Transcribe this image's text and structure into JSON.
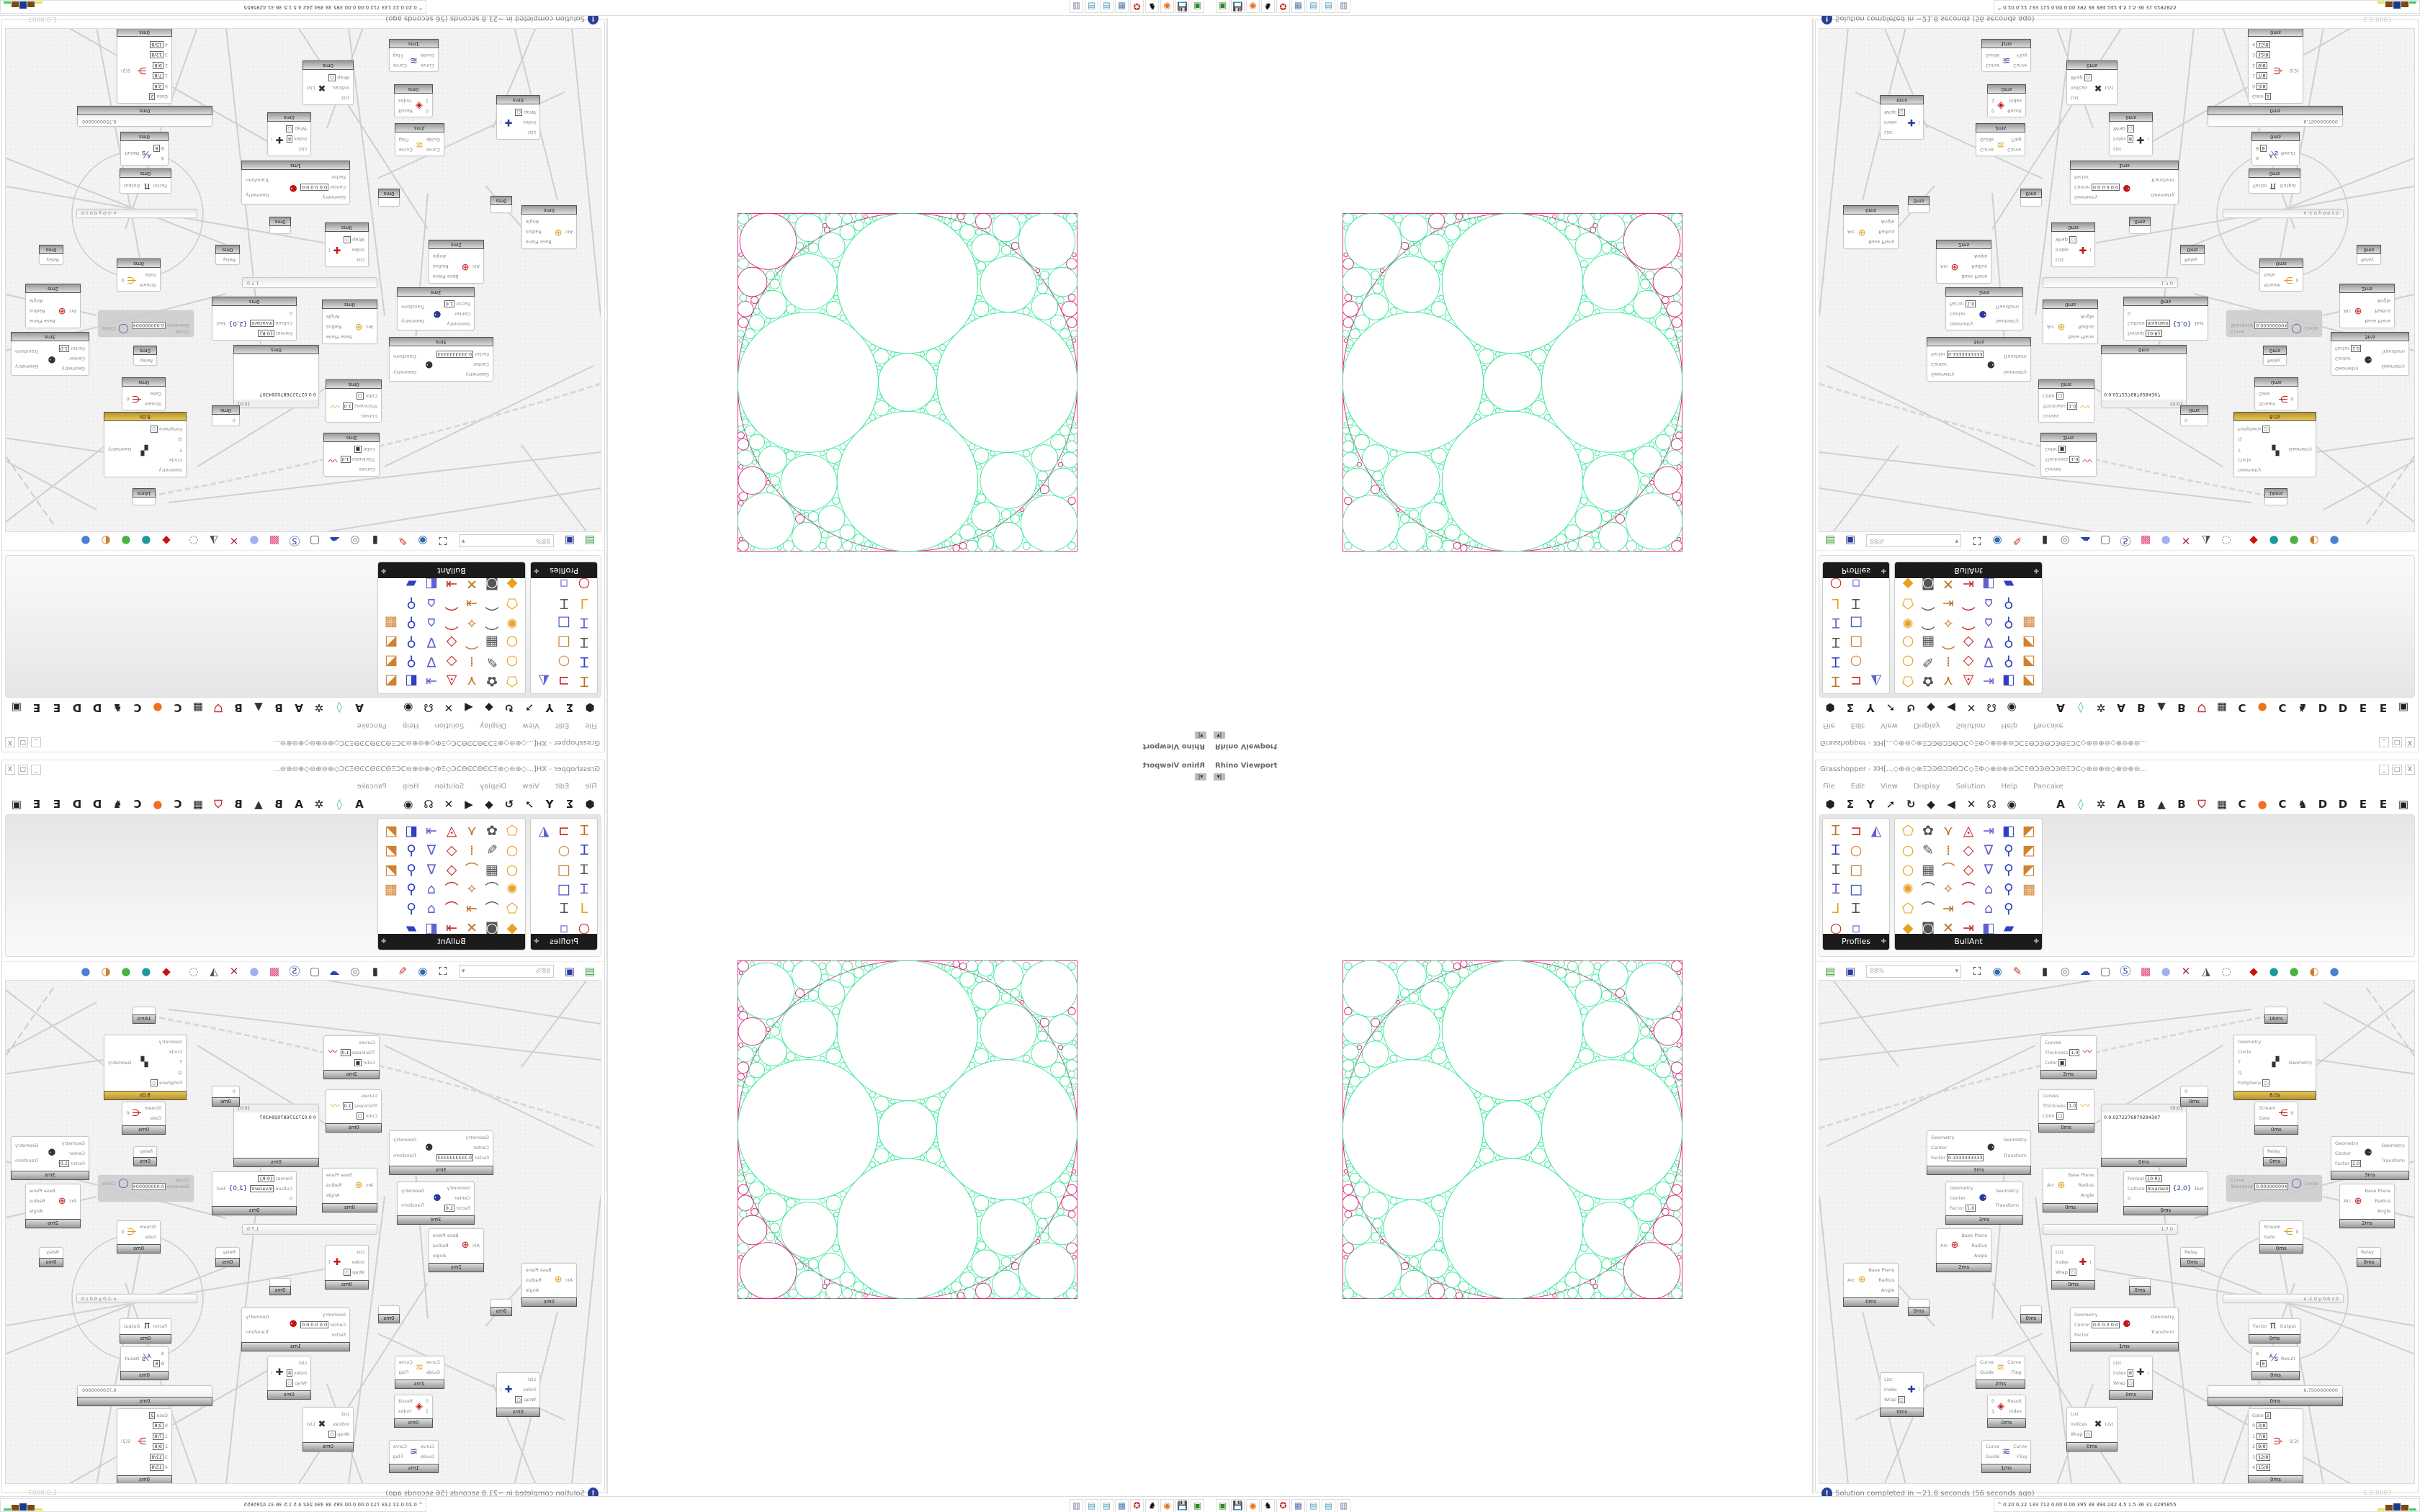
{
  "viewport": {
    "label": "Rhino Viewport",
    "dropdown": "▾|"
  },
  "grasshopper": {
    "title": "Grasshopper - XH[...◇⊕⊖◇⊕ΞϽϿΘϽϿΘϽϹ◇ΞΦ◇⊕⊖⊕⊖ϽϹΞΘϽϿΘϽϿΘΞϽϹ◇⊕⊖⊕⊖◇⊕⊖⊕⊖...",
    "window_buttons": [
      "_",
      "□",
      "X"
    ],
    "menu": [
      "File",
      "Edit",
      "View",
      "Display",
      "Solution",
      "Help",
      "Pancake"
    ],
    "tabs_left": [
      {
        "icon": "params-hexagon-icon",
        "g": "⬢"
      },
      {
        "icon": "maths-sigma-icon",
        "g": "Σ"
      },
      {
        "icon": "sets-icon",
        "g": "Y"
      },
      {
        "icon": "vector-icon",
        "g": "➚"
      },
      {
        "icon": "curve-icon",
        "g": "↻"
      },
      {
        "icon": "surface-icon",
        "g": "◆"
      },
      {
        "icon": "mesh-icon",
        "g": "◀"
      },
      {
        "icon": "intersect-icon",
        "g": "✕"
      },
      {
        "icon": "transform-icon",
        "g": "☊"
      },
      {
        "icon": "display-eye-icon",
        "g": "◉"
      }
    ],
    "tabs_right": [
      {
        "icon": "tab-a-icon",
        "g": "A"
      },
      {
        "icon": "crystal-icon",
        "g": "◊"
      },
      {
        "icon": "plugin-icon",
        "g": "✲"
      },
      {
        "icon": "tab-a-icon",
        "g": "A"
      },
      {
        "icon": "tab-b-icon",
        "g": "B"
      },
      {
        "icon": "mountain-icon",
        "g": "▲"
      },
      {
        "icon": "tab-b-icon",
        "g": "B"
      },
      {
        "icon": "shield-icon",
        "g": "⛉"
      },
      {
        "icon": "grid-icon",
        "g": "▦"
      },
      {
        "icon": "tab-c-icon",
        "g": "C"
      },
      {
        "icon": "orange-dot-icon",
        "g": "●"
      },
      {
        "icon": "tab-c-icon",
        "g": "C"
      },
      {
        "icon": "bird-icon",
        "g": "♞"
      },
      {
        "icon": "tab-d-icon",
        "g": "D"
      },
      {
        "icon": "tab-d-icon",
        "g": "D"
      },
      {
        "icon": "tab-e-icon",
        "g": "E"
      },
      {
        "icon": "tab-e-icon",
        "g": "E"
      },
      {
        "icon": "overflow-icon",
        "g": "▣"
      }
    ],
    "panels": [
      {
        "label": "Profiles",
        "cols": 3,
        "icons": [
          "Ꮖ",
          "⊐",
          "◭",
          "Ꮖ",
          "○",
          "",
          "Ɪ",
          "□",
          "",
          "Ɪ",
          "□",
          "",
          "⅃",
          "Ꮖ",
          "",
          "○",
          "▫",
          ""
        ]
      },
      {
        "label": "BullAnt",
        "cols": 7,
        "icons": [
          "⬠",
          "✿",
          "⋎",
          "◬",
          "⇥",
          "◧",
          "◩",
          "○",
          "✎",
          "⁞",
          "◇",
          "∇",
          "⚲",
          "◩",
          "○",
          "▦",
          "⌒",
          "◇",
          "∇",
          "⚲",
          "◩",
          "✺",
          "⌒",
          "✧",
          "⌒",
          "⌂",
          "⚲",
          "▦",
          "⬠",
          "⌒",
          "⇥",
          "⌒",
          "⌂",
          "⚲",
          "",
          "◆",
          "◙",
          "✕",
          "⇥",
          "◧",
          "▰",
          ""
        ]
      }
    ],
    "canvas_tools": {
      "left": [
        {
          "icon": "new-file-icon",
          "g": "▤"
        },
        {
          "icon": "save-icon",
          "g": "▣"
        }
      ],
      "zoom": "88%",
      "right": [
        {
          "icon": "zoom-extents-icon",
          "g": "⛶"
        },
        {
          "icon": "preview-eye-icon",
          "g": "◉"
        },
        {
          "icon": "sketch-icon",
          "g": "✎"
        },
        {
          "icon": "bin-icon",
          "g": "▮"
        },
        {
          "icon": "cluster-icon",
          "g": "◎"
        },
        {
          "icon": "cha-icon",
          "g": "☁"
        },
        {
          "icon": "window-icon",
          "g": "▢"
        },
        {
          "icon": "s-icon",
          "g": "Ⓢ"
        },
        {
          "icon": "gift-icon",
          "g": "▩"
        },
        {
          "icon": "bulb-icon",
          "g": "●"
        },
        {
          "icon": "cross-icon",
          "g": "✕"
        },
        {
          "icon": "bell-icon",
          "g": "◮"
        },
        {
          "icon": "ring-icon",
          "g": "◌"
        },
        {
          "icon": "red-gem-icon",
          "g": "◆"
        },
        {
          "icon": "teal-sphere-icon",
          "g": "●"
        },
        {
          "icon": "green-sphere-icon",
          "g": "●"
        },
        {
          "icon": "half-sphere-icon",
          "g": "◐"
        },
        {
          "icon": "blue-sphere-icon",
          "g": "●"
        }
      ]
    },
    "nodes": [
      {
        "in": [
          {
            "l": "Curves"
          },
          {
            "l": "Thickness",
            "v": "1.0"
          },
          {
            "l": "Color",
            "v": "■"
          }
        ],
        "out": [],
        "icon": "〰",
        "t": "2ms"
      },
      {
        "in": [
          {
            "l": "Curves"
          },
          {
            "l": "Thickness",
            "v": "1.0"
          },
          {
            "l": "Color",
            "v": "□"
          }
        ],
        "out": [],
        "icon": "〰",
        "t": "0ms"
      },
      {
        "in": [
          {
            "l": "Geometry"
          },
          {
            "l": "Center"
          },
          {
            "l": "Factor",
            "v": "0.3333333333"
          }
        ],
        "out": [
          "Geometry",
          "Transform"
        ],
        "icon": "⚈",
        "t": "3ms"
      },
      {
        "in": [
          {
            "l": "Geometry"
          },
          {
            "l": "Center"
          },
          {
            "l": "Factor",
            "v": "1.0"
          }
        ],
        "out": [
          "Geometry",
          "Transform"
        ],
        "icon": "⚈",
        "t": "3ms"
      },
      {
        "in": [
          {
            "l": "Arc"
          }
        ],
        "out": [
          "Base Plane",
          "Radius",
          "Angle"
        ],
        "icon": "⊕",
        "t": "2ms"
      },
      {
        "in": [
          {
            "l": "Arc"
          }
        ],
        "out": [
          "Base Plane",
          "Radius",
          "Angle"
        ],
        "icon": "⊕",
        "t": "0ms"
      },
      {
        "in": [],
        "out": [],
        "icon": "",
        "t": "0ms"
      },
      {
        "in": [],
        "out": [],
        "icon": "",
        "t": "0ms"
      },
      {
        "in": [
          {
            "l": "List"
          },
          {
            "l": "Index"
          },
          {
            "l": "Wrap",
            "v": "○"
          }
        ],
        "out": [
          "i"
        ],
        "icon": "✚",
        "t": "0ms"
      },
      {
        "in": [
          {
            "l": "Arc"
          }
        ],
        "out": [
          "Base Plane",
          "Radius",
          "Angle"
        ],
        "icon": "⊕",
        "t": "0ms"
      },
      {
        "panel": true,
        "header": "{0;0}",
        "text": "0  0.0272276870284307",
        "t": "0ms"
      },
      {
        "in": [
          {
            "l": "Format",
            "v": "{0:R}"
          },
          {
            "l": "Culture",
            "v": "Invariant"
          },
          {
            "l": "0"
          }
        ],
        "out": [
          "Text"
        ],
        "icon": "{2,0}",
        "t": "0ms"
      },
      {
        "slider": true,
        "value": "1.7 0"
      },
      {
        "in": [
          {
            "l": "0"
          }
        ],
        "out": [],
        "icon": "",
        "t": "0ms"
      },
      {
        "in": [
          {
            "l": "Geometry"
          },
          {
            "l": "Circle"
          },
          {
            "l": "T"
          },
          {
            "l": "Q"
          },
          {
            "l": "FixSphere",
            "v": "○"
          }
        ],
        "out": [
          "Geometry"
        ],
        "icon": "▞",
        "t": "8.0s",
        "gold": true
      },
      {
        "in": [],
        "out": [],
        "icon": "",
        "t": "16ms"
      },
      {
        "in": [
          {
            "l": "Stream"
          },
          {
            "l": "Gate"
          }
        ],
        "out": [
          "0"
        ],
        "icon": "⋲",
        "t": "0ms"
      },
      {
        "in": [
          {
            "l": "Relay"
          }
        ],
        "out": [],
        "icon": "",
        "t": "0ms"
      },
      {
        "in": [
          {
            "l": "Geometry"
          },
          {
            "l": "Center"
          },
          {
            "l": "Factor",
            "v": "1.0"
          }
        ],
        "out": [
          "Geometry",
          "Transform"
        ],
        "icon": "⚈",
        "t": "3ms"
      },
      {
        "in": [
          {
            "l": "Curve"
          },
          {
            "l": "Tolerance",
            "v": "0.000000004"
          }
        ],
        "out": [
          "Circle"
        ],
        "icon": "◯",
        "t": "",
        "disabled": true
      },
      {
        "in": [
          {
            "l": "Arc"
          }
        ],
        "out": [
          "Base Plane",
          "Radius",
          "Angle"
        ],
        "icon": "⊕",
        "t": "2ms"
      },
      {
        "in": [
          {
            "l": "Stream"
          },
          {
            "l": "Gate"
          }
        ],
        "out": [
          "0"
        ],
        "icon": "⋲",
        "t": "0ms"
      },
      {
        "in": [
          {
            "l": "Relay"
          }
        ],
        "out": [],
        "icon": "",
        "t": "0ms"
      },
      {
        "in": [
          {
            "l": "Relay"
          }
        ],
        "out": [],
        "icon": "",
        "t": "0ms"
      },
      {
        "in": [],
        "out": [],
        "icon": "",
        "t": "0ms"
      },
      {
        "slider": true,
        "value": "x -1.0  y 0.0  z 0"
      },
      {
        "in": [
          {
            "l": "Factor"
          }
        ],
        "out": [
          "Output"
        ],
        "icon": "π",
        "t": "0ms"
      },
      {
        "in": [
          {
            "l": "A"
          },
          {
            "l": "B",
            "v": "8"
          }
        ],
        "out": [
          "Result"
        ],
        "icon": "⅍",
        "t": "0ms"
      },
      {
        "in": [
          {
            "l": "Geometry"
          },
          {
            "l": "Center",
            "v": "0.0 0.0 0.0"
          },
          {
            "l": "Factor"
          }
        ],
        "out": [
          "Geometry",
          "Transform"
        ],
        "icon": "⚈",
        "t": "1ms"
      },
      {
        "in": [
          {
            "l": "Curve"
          },
          {
            "l": "Guide"
          }
        ],
        "out": [
          "Curve",
          "Flag"
        ],
        "icon": "≋",
        "t": "2ms"
      },
      {
        "in": [
          {
            "l": "List"
          },
          {
            "l": "Index",
            "v": "8"
          },
          {
            "l": "Wrap",
            "v": "○"
          }
        ],
        "out": [
          "i"
        ],
        "icon": "✚",
        "t": "0ms"
      },
      {
        "in": [
          {
            "l": "List"
          },
          {
            "l": "Index"
          },
          {
            "l": "Wrap",
            "v": "○"
          }
        ],
        "out": [
          "i"
        ],
        "icon": "✚",
        "t": "0ms"
      },
      {
        "in": [
          {
            "l": "0"
          },
          {
            "l": "1"
          }
        ],
        "out": [
          "Result",
          "Index"
        ],
        "icon": "◈",
        "t": "0ms"
      },
      {
        "slider": true,
        "value": "6.7500000000",
        "t": "0ms"
      },
      {
        "in": [
          {
            "l": "List"
          },
          {
            "l": "Indices"
          },
          {
            "l": "Wrap",
            "v": "○"
          }
        ],
        "out": [
          "List"
        ],
        "icon": "✖",
        "t": "0ms"
      },
      {
        "in": [
          {
            "l": "Curve"
          },
          {
            "l": "Guide"
          }
        ],
        "out": [
          "Curve",
          "Flag"
        ],
        "icon": "≋",
        "t": "1ms"
      },
      {
        "in": [
          {
            "l": "Gate",
            "v": "2"
          },
          {
            "l": "0",
            "v": "3/8"
          },
          {
            "l": "1",
            "v": "7/8"
          },
          {
            "l": "2",
            "v": "9/8"
          },
          {
            "l": "3",
            "v": "12/8"
          },
          {
            "l": "4",
            "v": "15/8"
          }
        ],
        "out": [
          "S(2)"
        ],
        "icon": "⋺",
        "t": "0ms"
      }
    ],
    "status": "Solution completed in ~21.8 seconds (56 seconds ago)",
    "version": "1.0.0007"
  },
  "taskbar": {
    "apps": [
      {
        "icon": "terminal-app-icon",
        "g": "▣",
        "c": "#2a8a2a"
      },
      {
        "icon": "floppy-64-icon",
        "g": "💾",
        "c": "#2a3a9a"
      },
      {
        "icon": "firefox-icon",
        "g": "◉",
        "c": "#e8701a"
      },
      {
        "icon": "wolf-app-icon",
        "g": "♞",
        "c": "#000000"
      },
      {
        "icon": "red-app-icon",
        "g": "✪",
        "c": "#cc2222"
      },
      {
        "icon": "calculator-icon",
        "g": "▦",
        "c": "#5a7aaa"
      },
      {
        "icon": "notepad-icon",
        "g": "▤",
        "c": "#5aa0c0"
      },
      {
        "icon": "notepad-icon",
        "g": "▤",
        "c": "#5aa0c0"
      },
      {
        "icon": "document-icon",
        "g": "▥",
        "c": "#7080a0"
      }
    ],
    "tray": "^  0.20 0.22  133  712  0.00 0.00  395   38   394   242   4.5   1.5   36   31   4295855",
    "tray_colors": [
      "#e8e040",
      "#7a4a10",
      "#1a3a8a",
      "#7a4a10",
      "#3ad060"
    ]
  },
  "colors": {
    "circle_green": "#3ee89a",
    "circle_pink": "#d02a7a",
    "gold": "#d8b040"
  }
}
